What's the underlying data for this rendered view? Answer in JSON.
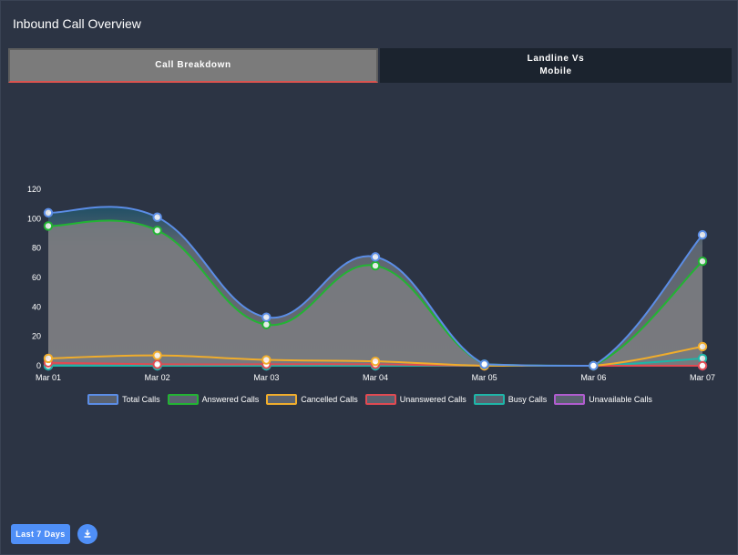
{
  "header": {
    "title": "Inbound Call Overview"
  },
  "tabs": [
    {
      "label": "Call Breakdown",
      "active": true
    },
    {
      "label": "Landline Vs Mobile",
      "active": false
    }
  ],
  "footer": {
    "range_label": "Last 7 Days",
    "download_icon": "download-icon"
  },
  "chart_data": {
    "type": "area",
    "categories": [
      "Mar 01",
      "Mar 02",
      "Mar 03",
      "Mar 04",
      "Mar 05",
      "Mar 06",
      "Mar 07"
    ],
    "ylim": [
      0,
      120
    ],
    "yticks": [
      0,
      20,
      40,
      60,
      80,
      100,
      120
    ],
    "legend_position": "bottom",
    "series": [
      {
        "name": "Total Calls",
        "color": "#5b8de6",
        "values": [
          104,
          101,
          33,
          74,
          1,
          0,
          89
        ]
      },
      {
        "name": "Answered Calls",
        "color": "#22b433",
        "values": [
          95,
          92,
          28,
          68,
          1,
          0,
          71
        ]
      },
      {
        "name": "Cancelled Calls",
        "color": "#f0ad2c",
        "values": [
          5,
          7,
          4,
          3,
          0,
          0,
          13
        ]
      },
      {
        "name": "Unanswered Calls",
        "color": "#e04a52",
        "values": [
          2,
          1,
          1,
          1,
          0,
          0,
          0
        ]
      },
      {
        "name": "Busy Calls",
        "color": "#1eb5a8",
        "values": [
          0,
          0,
          0,
          0,
          0,
          0,
          5
        ]
      },
      {
        "name": "Unavailable Calls",
        "color": "#b05ccf",
        "values": [
          0,
          0,
          0,
          0,
          0,
          0,
          0
        ]
      }
    ]
  }
}
